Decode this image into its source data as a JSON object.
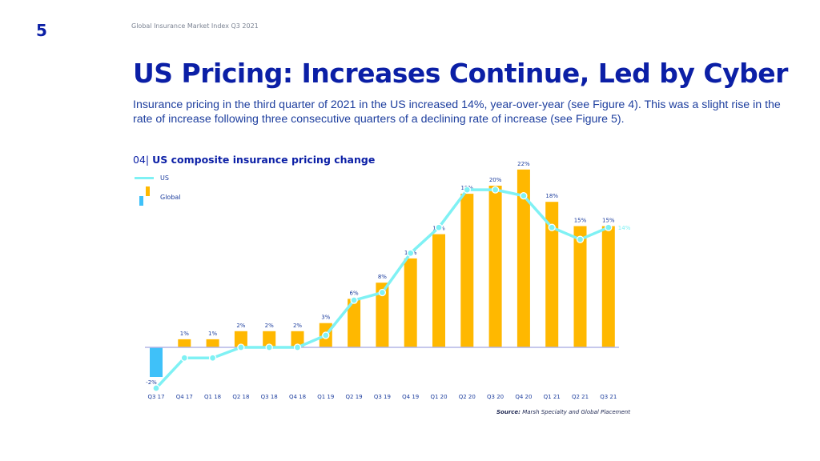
{
  "page": {
    "number": "5",
    "running_header": "Global Insurance Market Index Q3 2021",
    "title": "US Pricing: Increases Continue, Led by Cyber",
    "intro": "Insurance pricing in the third quarter of 2021 in the US increased 14%, year-over-year (see Figure 4). This was a slight rise in the rate of increase following three consecutive quarters of a declining rate of increase (see Figure 5).",
    "figure_number": "04|",
    "figure_title": "US composite insurance pricing change",
    "source_label": "Source:",
    "source_text": "Marsh Specialty and Global Placement"
  },
  "colors": {
    "bar_positive": "#ffb800",
    "bar_negative": "#3fc1f9",
    "line": "#7ff1f4",
    "baseline": "#b3b6e6",
    "label": "#1d3e9e",
    "line_label": "#7ff1f4"
  },
  "chart_data": {
    "type": "bar",
    "title": "US composite insurance pricing change",
    "xlabel": "",
    "ylabel": "",
    "grid": false,
    "legend": "top-left",
    "categories": [
      "Q3 17",
      "Q4 17",
      "Q1 18",
      "Q2 18",
      "Q3 18",
      "Q4 18",
      "Q1 19",
      "Q2 19",
      "Q3 19",
      "Q4 19",
      "Q1 20",
      "Q2 20",
      "Q3 20",
      "Q4 20",
      "Q1 21",
      "Q2 21",
      "Q3 21"
    ],
    "series": [
      {
        "name": "Global",
        "type": "bar",
        "values": [
          -2,
          1,
          1,
          2,
          2,
          2,
          3,
          6,
          8,
          11,
          14,
          19,
          20,
          22,
          18,
          15,
          15
        ],
        "labels": [
          "-2%",
          "1%",
          "1%",
          "2%",
          "2%",
          "2%",
          "3%",
          "6%",
          "8%",
          "11%",
          "14%",
          "19%",
          "20%",
          "22%",
          "18%",
          "15%",
          "15%"
        ]
      },
      {
        "name": "US",
        "type": "line",
        "values": [
          -5,
          -1.3,
          -1.3,
          0,
          0,
          0,
          1.4,
          5.5,
          6.4,
          11,
          14,
          18.4,
          18.4,
          17.7,
          14,
          12.6,
          14
        ],
        "end_label": "14%"
      }
    ],
    "ylim": [
      -5,
      22
    ]
  }
}
